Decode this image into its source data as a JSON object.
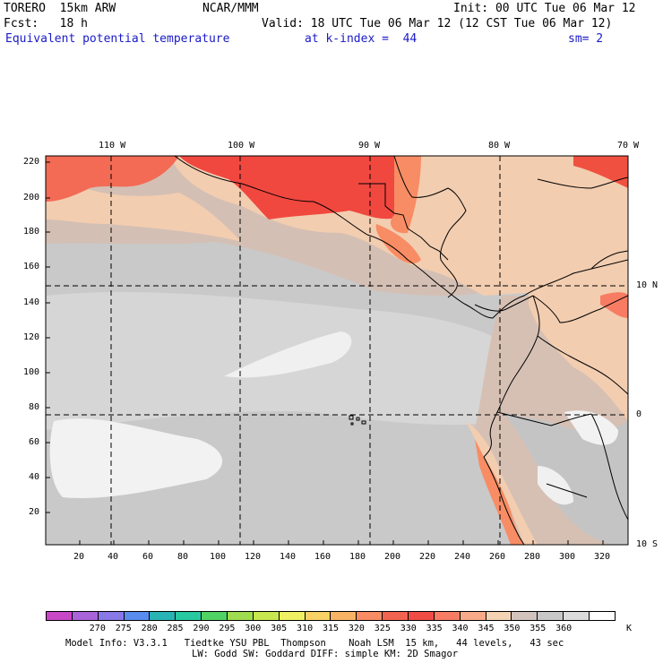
{
  "header": {
    "model": "TORERO  15km ARW",
    "center": "NCAR/MMM",
    "init": "Init: 00 UTC Tue 06 Mar 12",
    "fcst": "Fcst:   18 h",
    "valid": "Valid: 18 UTC Tue 06 Mar 12 (12 CST Tue 06 Mar 12)",
    "field": "Equivalent potential temperature",
    "level": "at k-index =  44",
    "smooth": "sm= 2"
  },
  "axes": {
    "top_labels": [
      "110 W",
      "100 W",
      "90 W",
      "80 W",
      "70 W"
    ],
    "right_labels": [
      "10 N",
      "0",
      "10 S"
    ],
    "left_labels": [
      "220",
      "200",
      "180",
      "160",
      "140",
      "120",
      "100",
      "80",
      "60",
      "40",
      "20"
    ],
    "bottom_labels": [
      "20",
      "40",
      "60",
      "80",
      "100",
      "120",
      "140",
      "160",
      "180",
      "200",
      "220",
      "240",
      "260",
      "280",
      "300",
      "320"
    ]
  },
  "colorbar": {
    "colors": [
      "#c848c8",
      "#a864d8",
      "#8878e8",
      "#5a8cf0",
      "#28b4b4",
      "#28c8a0",
      "#50d264",
      "#a0dc50",
      "#c8e650",
      "#f0f064",
      "#f8d264",
      "#f8b464",
      "#f88c64",
      "#f06450",
      "#f04c46",
      "#f87c64",
      "#f8aa88",
      "#f4d2b4",
      "#d2c4bc",
      "#c8c8c8",
      "#dcdcdc",
      "#ffffff"
    ],
    "labels": [
      "270",
      "275",
      "280",
      "285",
      "290",
      "295",
      "300",
      "305",
      "310",
      "315",
      "320",
      "325",
      "330",
      "335",
      "340",
      "345",
      "350",
      "355",
      "360"
    ],
    "unit": "K"
  },
  "footer": {
    "line1": "Model Info: V3.3.1   Tiedtke YSU PBL  Thompson    Noah LSM  15 km,   44 levels,   43 sec",
    "line2": "LW: Godd SW: Goddard DIFF: simple KM: 2D Smagor"
  }
}
